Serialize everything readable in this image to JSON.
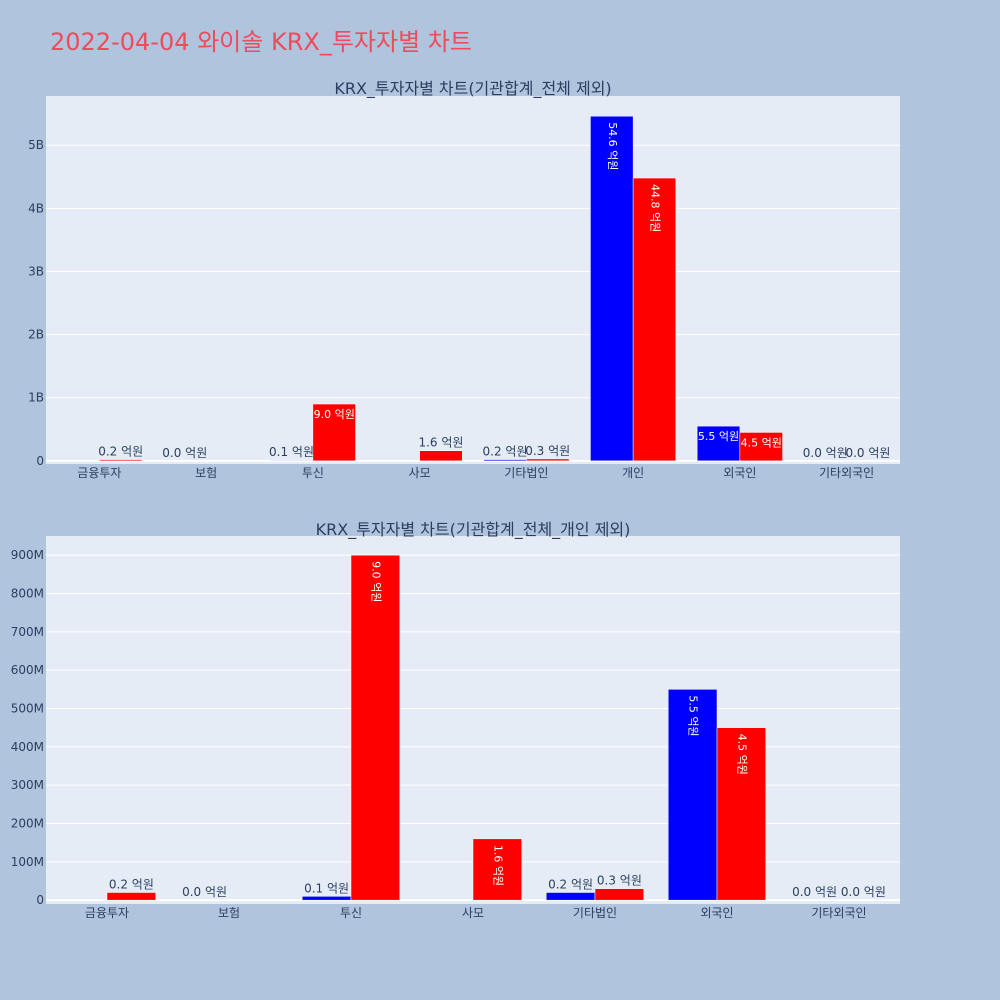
{
  "title": "2022-04-04 와이솔 KRX_투자자별 차트",
  "colors": {
    "buy": "#0000ff",
    "sell": "#ff0000",
    "title": "#ef4b5c",
    "plot_bg": "#e5ecf6",
    "page_bg": "#b0c4de"
  },
  "chart_data": [
    {
      "type": "bar",
      "title": "KRX_투자자별 차트(기관합계_전체 제외)",
      "categories": [
        "금융투자",
        "보험",
        "투신",
        "사모",
        "기타법인",
        "개인",
        "외국인",
        "기타외국인"
      ],
      "series": [
        {
          "values": [
            0,
            0,
            10000000,
            0,
            20000000,
            5460000000,
            550000000,
            0
          ],
          "labels": [
            "",
            "0.0 억원",
            "0.1 억원",
            "",
            "0.2 억원",
            "54.6 억원",
            "5.5 억원",
            "0.0 억원"
          ]
        },
        {
          "values": [
            20000000,
            0,
            900000000,
            160000000,
            30000000,
            4480000000,
            450000000,
            0
          ],
          "labels": [
            "0.2 억원",
            "",
            "9.0 억원",
            "1.6 억원",
            "0.3 억원",
            "44.8 억원",
            "4.5 억원",
            "0.0 억원"
          ]
        }
      ],
      "yticks": [
        0,
        1000000000,
        2000000000,
        3000000000,
        4000000000,
        5000000000
      ],
      "ytick_labels": [
        "0",
        "1B",
        "2B",
        "3B",
        "4B",
        "5B"
      ],
      "ylim": [
        -50000000,
        5780000000
      ],
      "grid": true,
      "legend": "none"
    },
    {
      "type": "bar",
      "title": "KRX_투자자별 차트(기관합계_전체_개인 제외)",
      "categories": [
        "금융투자",
        "보험",
        "투신",
        "사모",
        "기타법인",
        "외국인",
        "기타외국인"
      ],
      "series": [
        {
          "values": [
            0,
            0,
            10000000,
            0,
            20000000,
            550000000,
            0
          ],
          "labels": [
            "",
            "0.0 억원",
            "0.1 억원",
            "",
            "0.2 억원",
            "5.5 억원",
            "0.0 억원"
          ]
        },
        {
          "values": [
            20000000,
            0,
            900000000,
            160000000,
            30000000,
            450000000,
            0
          ],
          "labels": [
            "0.2 억원",
            "",
            "9.0 억원",
            "1.6 억원",
            "0.3 억원",
            "4.5 억원",
            "0.0 억원"
          ]
        }
      ],
      "yticks": [
        0,
        100000000,
        200000000,
        300000000,
        400000000,
        500000000,
        600000000,
        700000000,
        800000000,
        900000000
      ],
      "ytick_labels": [
        "0",
        "100M",
        "200M",
        "300M",
        "400M",
        "500M",
        "600M",
        "700M",
        "800M",
        "900M"
      ],
      "ylim": [
        -10000000,
        950000000
      ],
      "grid": true,
      "legend": "none"
    }
  ]
}
